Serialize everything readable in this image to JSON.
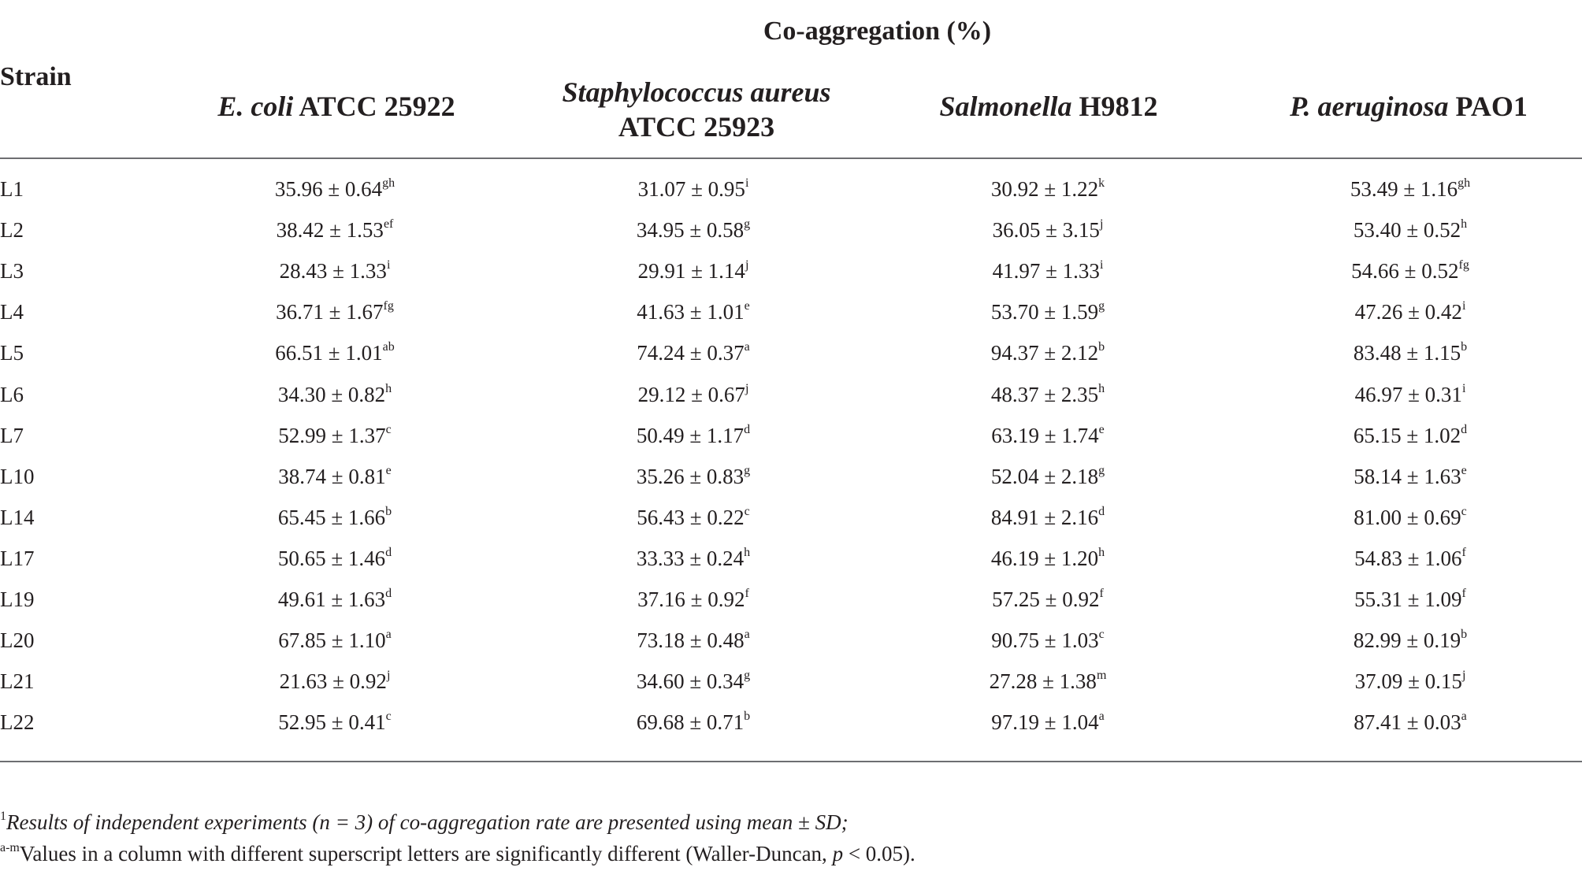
{
  "table": {
    "group_header": "Co-aggregation (%)",
    "strain_header": "Strain",
    "columns": [
      {
        "italic": "E. coli",
        "rest": " ATCC 25922",
        "line2": ""
      },
      {
        "italic": "Staphylococcus aureus",
        "rest": "",
        "line2": "ATCC 25923"
      },
      {
        "italic": "Salmonella",
        "rest": " H9812",
        "line2": ""
      },
      {
        "italic": "P. aeruginosa",
        "rest": " PAO1",
        "line2": ""
      }
    ],
    "rows": [
      {
        "strain": "L1",
        "cells": [
          {
            "v": "35.96 ± 0.64",
            "s": "gh"
          },
          {
            "v": "31.07 ± 0.95",
            "s": "i"
          },
          {
            "v": "30.92 ± 1.22",
            "s": "k"
          },
          {
            "v": "53.49 ± 1.16",
            "s": "gh"
          }
        ]
      },
      {
        "strain": "L2",
        "cells": [
          {
            "v": "38.42 ± 1.53",
            "s": "ef"
          },
          {
            "v": "34.95 ± 0.58",
            "s": "g"
          },
          {
            "v": "36.05 ± 3.15",
            "s": "j"
          },
          {
            "v": "53.40 ± 0.52",
            "s": "h"
          }
        ]
      },
      {
        "strain": "L3",
        "cells": [
          {
            "v": "28.43 ± 1.33",
            "s": "i"
          },
          {
            "v": "29.91 ± 1.14",
            "s": "j"
          },
          {
            "v": "41.97 ± 1.33",
            "s": "i"
          },
          {
            "v": "54.66 ± 0.52",
            "s": "fg"
          }
        ]
      },
      {
        "strain": "L4",
        "cells": [
          {
            "v": "36.71 ± 1.67",
            "s": "fg"
          },
          {
            "v": "41.63 ± 1.01",
            "s": "e"
          },
          {
            "v": "53.70 ± 1.59",
            "s": "g"
          },
          {
            "v": "47.26 ± 0.42",
            "s": "i"
          }
        ]
      },
      {
        "strain": "L5",
        "cells": [
          {
            "v": "66.51 ± 1.01",
            "s": "ab"
          },
          {
            "v": "74.24 ± 0.37",
            "s": "a"
          },
          {
            "v": "94.37 ± 2.12",
            "s": "b"
          },
          {
            "v": "83.48 ± 1.15",
            "s": "b"
          }
        ]
      },
      {
        "strain": "L6",
        "cells": [
          {
            "v": "34.30 ± 0.82",
            "s": "h"
          },
          {
            "v": "29.12 ± 0.67",
            "s": "j"
          },
          {
            "v": "48.37 ± 2.35",
            "s": "h"
          },
          {
            "v": "46.97 ± 0.31",
            "s": "i"
          }
        ]
      },
      {
        "strain": "L7",
        "cells": [
          {
            "v": "52.99 ± 1.37",
            "s": "c"
          },
          {
            "v": "50.49 ± 1.17",
            "s": "d"
          },
          {
            "v": "63.19 ± 1.74",
            "s": "e"
          },
          {
            "v": "65.15 ± 1.02",
            "s": "d"
          }
        ]
      },
      {
        "strain": "L10",
        "cells": [
          {
            "v": "38.74 ± 0.81",
            "s": "e"
          },
          {
            "v": "35.26 ± 0.83",
            "s": "g"
          },
          {
            "v": "52.04 ± 2.18",
            "s": "g"
          },
          {
            "v": "58.14 ± 1.63",
            "s": "e"
          }
        ]
      },
      {
        "strain": "L14",
        "cells": [
          {
            "v": "65.45 ± 1.66",
            "s": "b"
          },
          {
            "v": "56.43 ± 0.22",
            "s": "c"
          },
          {
            "v": "84.91 ± 2.16",
            "s": "d"
          },
          {
            "v": "81.00 ± 0.69",
            "s": "c"
          }
        ]
      },
      {
        "strain": "L17",
        "cells": [
          {
            "v": "50.65 ± 1.46",
            "s": "d"
          },
          {
            "v": "33.33 ± 0.24",
            "s": "h"
          },
          {
            "v": "46.19 ± 1.20",
            "s": "h"
          },
          {
            "v": "54.83 ± 1.06",
            "s": "f"
          }
        ]
      },
      {
        "strain": "L19",
        "cells": [
          {
            "v": "49.61 ± 1.63",
            "s": "d"
          },
          {
            "v": "37.16 ± 0.92",
            "s": "f"
          },
          {
            "v": "57.25 ± 0.92",
            "s": "f"
          },
          {
            "v": "55.31 ± 1.09",
            "s": "f"
          }
        ]
      },
      {
        "strain": "L20",
        "cells": [
          {
            "v": "67.85 ± 1.10",
            "s": "a"
          },
          {
            "v": "73.18 ± 0.48",
            "s": "a"
          },
          {
            "v": "90.75 ± 1.03",
            "s": "c"
          },
          {
            "v": "82.99 ± 0.19",
            "s": "b"
          }
        ]
      },
      {
        "strain": "L21",
        "cells": [
          {
            "v": "21.63 ± 0.92",
            "s": "j"
          },
          {
            "v": "34.60 ± 0.34",
            "s": "g"
          },
          {
            "v": "27.28 ± 1.38",
            "s": "m"
          },
          {
            "v": "37.09 ± 0.15",
            "s": "j"
          }
        ]
      },
      {
        "strain": "L22",
        "cells": [
          {
            "v": "52.95 ± 0.41",
            "s": "c"
          },
          {
            "v": "69.68 ± 0.71",
            "s": "b"
          },
          {
            "v": "97.19 ± 1.04",
            "s": "a"
          },
          {
            "v": "87.41 ± 0.03",
            "s": "a"
          }
        ]
      }
    ]
  },
  "footnotes": {
    "note1_marker": "1",
    "note1_text": "Results of independent experiments (n = 3) of co-aggregation rate are presented using mean ± SD;",
    "note2_marker": "a-m",
    "note2_text_before": "Values in a column with different superscript letters are significantly different (Waller-Duncan, ",
    "note2_p": "p",
    "note2_text_after": " < 0.05)."
  }
}
